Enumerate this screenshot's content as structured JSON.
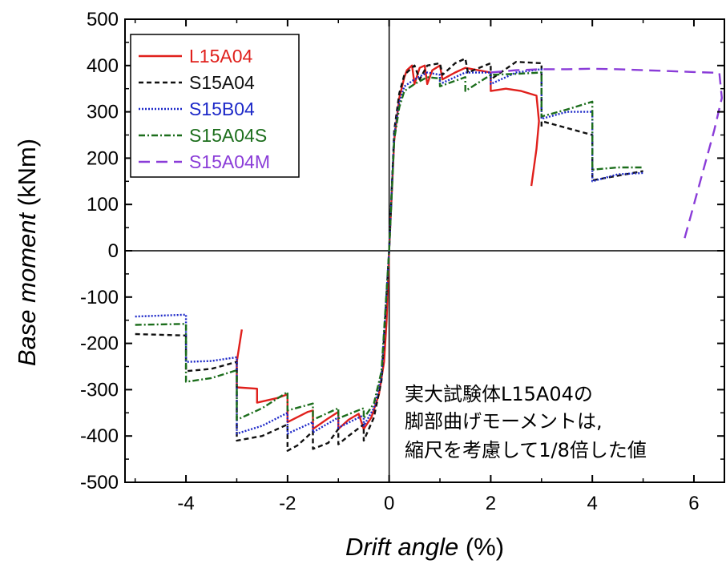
{
  "chart_data": {
    "type": "line",
    "xlabel_italic": "Drift angle",
    "xlabel_unit": " (%)",
    "ylabel_italic": "Base moment",
    "ylabel_unit": " (kNm)",
    "xlim": [
      -5.2,
      6.6
    ],
    "ylim": [
      -500,
      500
    ],
    "x_ticks": [
      -4,
      -2,
      0,
      2,
      4,
      6
    ],
    "y_ticks": [
      -500,
      -400,
      -300,
      -200,
      -100,
      0,
      100,
      200,
      300,
      400,
      500
    ],
    "legend_position": "top-left",
    "annotation": [
      "実大試験体L15A04の",
      "脚部曲げモーメントは,",
      "縮尺を考慮して1/8倍した値"
    ],
    "series": [
      {
        "name": "L15A04",
        "color": "#e0201c",
        "dash": "solid",
        "points": [
          [
            -2.9,
            -170
          ],
          [
            -3.0,
            -240
          ],
          [
            -3.0,
            -295
          ],
          [
            -2.6,
            -298
          ],
          [
            -2.6,
            -328
          ],
          [
            -2.2,
            -318
          ],
          [
            -2.0,
            -310
          ],
          [
            -2.0,
            -370
          ],
          [
            -1.6,
            -348
          ],
          [
            -1.5,
            -345
          ],
          [
            -1.5,
            -385
          ],
          [
            -1.2,
            -362
          ],
          [
            -1.0,
            -348
          ],
          [
            -1.0,
            -385
          ],
          [
            -0.8,
            -365
          ],
          [
            -0.6,
            -352
          ],
          [
            -0.5,
            -385
          ],
          [
            -0.35,
            -360
          ],
          [
            -0.2,
            -310
          ],
          [
            -0.1,
            -240
          ],
          [
            -0.05,
            -150
          ],
          [
            0,
            0
          ],
          [
            0.05,
            120
          ],
          [
            0.1,
            240
          ],
          [
            0.2,
            330
          ],
          [
            0.3,
            375
          ],
          [
            0.35,
            390
          ],
          [
            0.45,
            400
          ],
          [
            0.5,
            360
          ],
          [
            0.6,
            395
          ],
          [
            0.7,
            400
          ],
          [
            0.75,
            360
          ],
          [
            0.85,
            390
          ],
          [
            1.0,
            400
          ],
          [
            1.05,
            370
          ],
          [
            1.3,
            385
          ],
          [
            1.5,
            395
          ],
          [
            2.0,
            385
          ],
          [
            2.0,
            345
          ],
          [
            2.3,
            350
          ],
          [
            2.6,
            345
          ],
          [
            2.9,
            335
          ],
          [
            2.95,
            280
          ],
          [
            2.9,
            220
          ],
          [
            2.85,
            180
          ],
          [
            2.8,
            140
          ]
        ]
      },
      {
        "name": "S15A04",
        "color": "#111111",
        "dash": "6,4",
        "points": [
          [
            -5.0,
            -180
          ],
          [
            -4.0,
            -183
          ],
          [
            -4.0,
            -260
          ],
          [
            -3.5,
            -255
          ],
          [
            -3.0,
            -240
          ],
          [
            -3.0,
            -410
          ],
          [
            -2.5,
            -400
          ],
          [
            -2.0,
            -375
          ],
          [
            -2.0,
            -432
          ],
          [
            -1.8,
            -420
          ],
          [
            -1.5,
            -390
          ],
          [
            -1.5,
            -428
          ],
          [
            -1.2,
            -415
          ],
          [
            -1.0,
            -385
          ],
          [
            -1.0,
            -418
          ],
          [
            -0.8,
            -400
          ],
          [
            -0.5,
            -375
          ],
          [
            -0.5,
            -410
          ],
          [
            -0.3,
            -360
          ],
          [
            -0.15,
            -280
          ],
          [
            0,
            0
          ],
          [
            0.1,
            260
          ],
          [
            0.2,
            340
          ],
          [
            0.3,
            380
          ],
          [
            0.5,
            400
          ],
          [
            0.6,
            370
          ],
          [
            0.75,
            400
          ],
          [
            1.0,
            405
          ],
          [
            1.05,
            380
          ],
          [
            1.3,
            405
          ],
          [
            1.5,
            415
          ],
          [
            1.55,
            385
          ],
          [
            2.0,
            405
          ],
          [
            2.0,
            370
          ],
          [
            2.5,
            408
          ],
          [
            3.0,
            405
          ],
          [
            3.0,
            265
          ],
          [
            3.0,
            280
          ],
          [
            3.5,
            265
          ],
          [
            4.0,
            250
          ],
          [
            4.0,
            160
          ],
          [
            4.0,
            152
          ],
          [
            5.0,
            172
          ]
        ]
      },
      {
        "name": "S15B04",
        "color": "#1c28c8",
        "dash": "2,2",
        "points": [
          [
            -5.0,
            -142
          ],
          [
            -4.0,
            -138
          ],
          [
            -4.0,
            -240
          ],
          [
            -3.5,
            -238
          ],
          [
            -3.0,
            -230
          ],
          [
            -3.0,
            -395
          ],
          [
            -2.5,
            -378
          ],
          [
            -2.0,
            -350
          ],
          [
            -2.0,
            -395
          ],
          [
            -1.5,
            -370
          ],
          [
            -1.5,
            -392
          ],
          [
            -1.0,
            -360
          ],
          [
            -1.0,
            -382
          ],
          [
            -0.5,
            -355
          ],
          [
            -0.5,
            -378
          ],
          [
            -0.3,
            -340
          ],
          [
            -0.15,
            -270
          ],
          [
            0,
            0
          ],
          [
            0.1,
            250
          ],
          [
            0.2,
            320
          ],
          [
            0.3,
            355
          ],
          [
            0.5,
            370
          ],
          [
            0.75,
            385
          ],
          [
            1.0,
            380
          ],
          [
            1.0,
            360
          ],
          [
            1.5,
            385
          ],
          [
            2.0,
            385
          ],
          [
            2.0,
            360
          ],
          [
            2.5,
            385
          ],
          [
            3.0,
            392
          ],
          [
            3.0,
            285
          ],
          [
            3.5,
            300
          ],
          [
            4.0,
            300
          ],
          [
            4.0,
            150
          ],
          [
            4.5,
            165
          ],
          [
            5.0,
            168
          ]
        ]
      },
      {
        "name": "S15A04S",
        "color": "#1c6e1c",
        "dash": "8,3,2,3",
        "points": [
          [
            -5.0,
            -160
          ],
          [
            -4.0,
            -158
          ],
          [
            -4.0,
            -283
          ],
          [
            -3.5,
            -275
          ],
          [
            -3.0,
            -258
          ],
          [
            -3.0,
            -365
          ],
          [
            -2.5,
            -340
          ],
          [
            -2.0,
            -305
          ],
          [
            -2.0,
            -345
          ],
          [
            -1.5,
            -330
          ],
          [
            -1.5,
            -365
          ],
          [
            -1.0,
            -340
          ],
          [
            -1.0,
            -362
          ],
          [
            -0.5,
            -340
          ],
          [
            -0.5,
            -362
          ],
          [
            -0.3,
            -330
          ],
          [
            -0.15,
            -260
          ],
          [
            0,
            0
          ],
          [
            0.1,
            240
          ],
          [
            0.2,
            310
          ],
          [
            0.3,
            345
          ],
          [
            0.5,
            360
          ],
          [
            0.75,
            375
          ],
          [
            1.0,
            372
          ],
          [
            1.0,
            355
          ],
          [
            1.5,
            375
          ],
          [
            1.5,
            345
          ],
          [
            2.0,
            380
          ],
          [
            2.5,
            382
          ],
          [
            3.0,
            385
          ],
          [
            3.0,
            290
          ],
          [
            3.5,
            305
          ],
          [
            4.0,
            322
          ],
          [
            4.0,
            175
          ],
          [
            4.5,
            180
          ],
          [
            5.0,
            180
          ]
        ]
      },
      {
        "name": "S15A04M",
        "color": "#8a3cd8",
        "dash": "14,8",
        "points": [
          [
            2.0,
            385
          ],
          [
            2.5,
            390
          ],
          [
            3.0,
            392
          ],
          [
            3.5,
            392
          ],
          [
            4.0,
            393
          ],
          [
            4.5,
            392
          ],
          [
            5.0,
            390
          ],
          [
            5.5,
            388
          ],
          [
            6.0,
            386
          ],
          [
            6.5,
            384
          ],
          [
            6.55,
            330
          ],
          [
            6.4,
            260
          ],
          [
            6.1,
            140
          ],
          [
            5.9,
            60
          ],
          [
            5.8,
            20
          ]
        ]
      }
    ]
  }
}
